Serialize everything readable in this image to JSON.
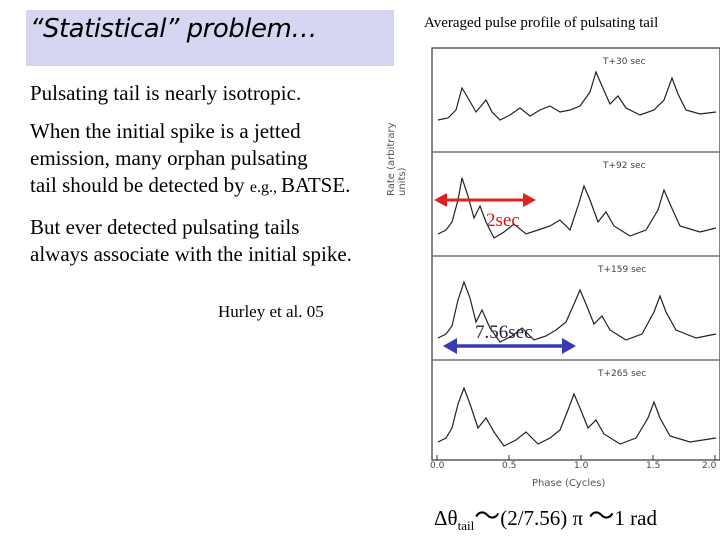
{
  "slide": {
    "title": "“Statistical” problem…",
    "para1": "Pulsating tail is nearly isotropic.",
    "para2_line1": "When the initial spike is a jetted",
    "para2_line2": "emission, many orphan pulsating",
    "para2_line3_a": "tail should be detected by ",
    "para2_line3_b": "e.g., ",
    "para2_line3_c": "BATSE.",
    "para3_line1": "But ever detected pulsating tails",
    "para3_line2": "always associate with the initial spike.",
    "reference": "Hurley et al. 05"
  },
  "figure": {
    "title": "Averaged pulse profile of pulsating tail",
    "ylabel": "Rate (arbitrary units)",
    "xlabel": "Phase (Cycles)",
    "xticks": [
      "0.0",
      "0.5",
      "1.0",
      "1.5",
      "2.0"
    ],
    "panel_labels": [
      "T+30 sec",
      "T+92 sec",
      "T+159 sec",
      "T+265 sec"
    ],
    "annotation_red": "2sec",
    "annotation_blue": "7.56sec",
    "arrow_colors": {
      "red": "#dd2222",
      "blue": "#3a3ab0"
    }
  },
  "formula": {
    "delta_theta": "Δθ",
    "sub": "tail",
    "tilde1": "～",
    "middle": "(2/7.56) π",
    "tilde2": "～",
    "end": "1 rad"
  }
}
